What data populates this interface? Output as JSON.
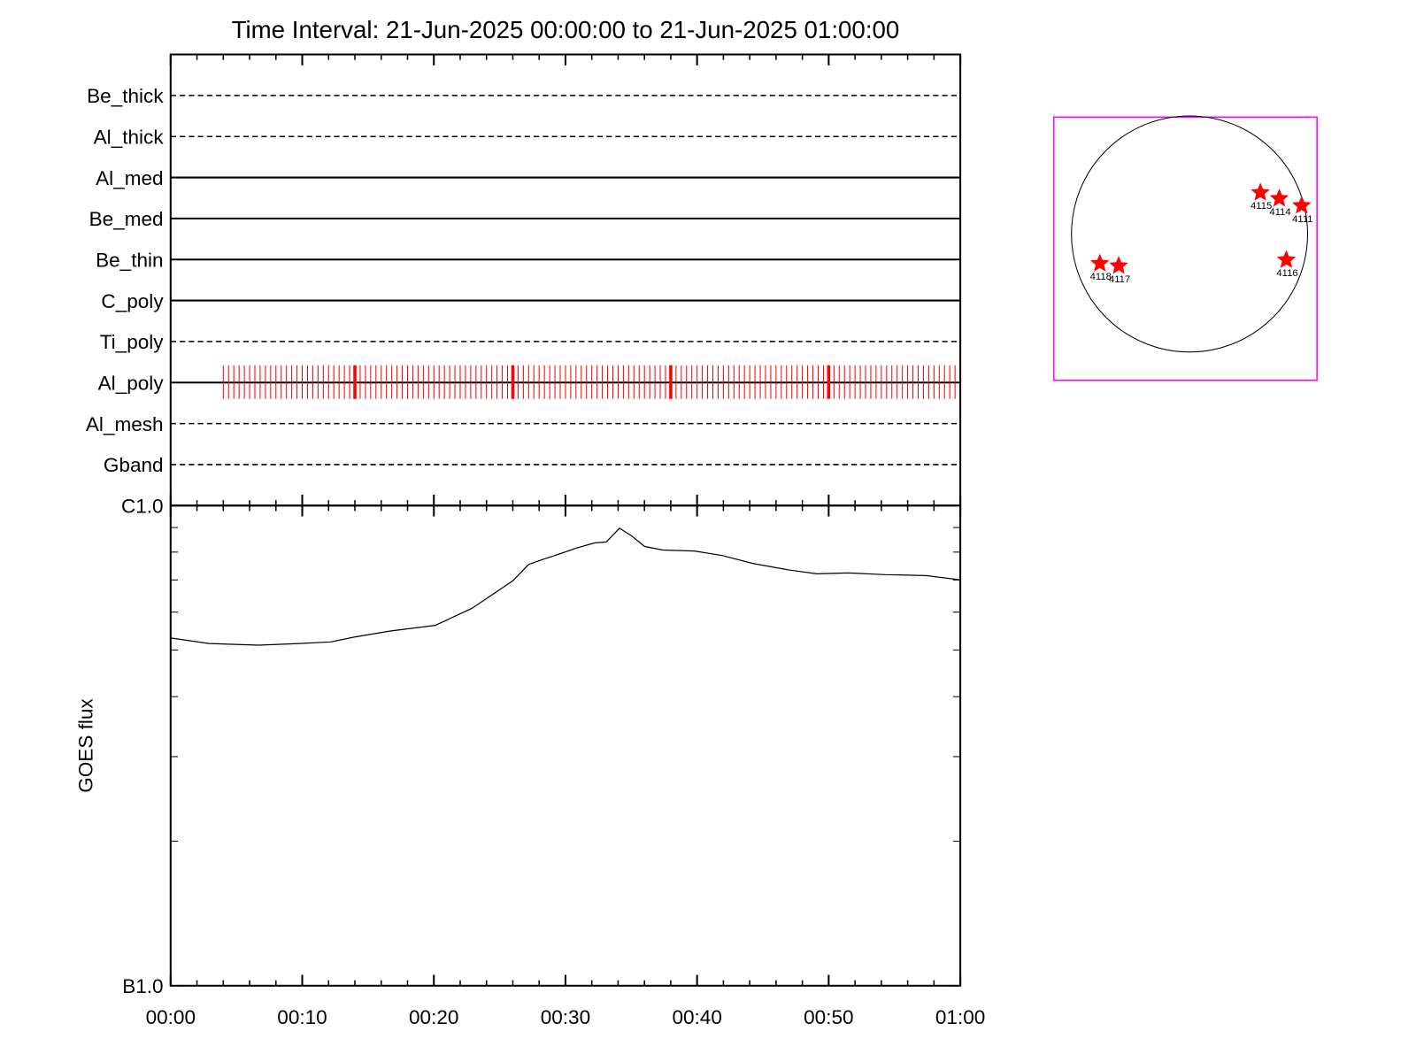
{
  "chart_data": [
    {
      "type": "timeline",
      "title": "Time Interval: 21-Jun-2025 00:00:00 to 21-Jun-2025 01:00:00",
      "categories": [
        "Be_thick",
        "Al_thick",
        "Al_med",
        "Be_med",
        "Be_thin",
        "C_poly",
        "Ti_poly",
        "Al_poly",
        "Al_mesh",
        "Gband"
      ],
      "line_styles": [
        "dashed",
        "dashed",
        "solid",
        "solid",
        "solid",
        "solid",
        "dashed",
        "solid",
        "dashed",
        "dashed"
      ],
      "observation_row": 7,
      "color": "#ff0000",
      "xlim": [
        0,
        60
      ],
      "x": [
        4,
        4.4,
        4.8,
        5.2,
        5.6,
        6,
        6.4,
        6.8,
        7.2,
        7.6,
        8,
        8.4,
        8.8,
        9.2,
        9.6,
        10,
        10.4,
        10.8,
        11.2,
        11.6,
        12,
        12.4,
        12.8,
        13.2,
        13.6,
        14,
        14.4,
        14.8,
        15.2,
        15.6,
        16,
        16.4,
        16.8,
        17.2,
        17.6,
        18,
        18.4,
        18.8,
        19.2,
        19.6,
        20,
        20.4,
        20.8,
        21.2,
        21.6,
        22,
        22.4,
        22.8,
        23.2,
        23.6,
        24,
        24.4,
        24.8,
        25.2,
        25.6,
        26,
        26.4,
        26.8,
        27.2,
        27.6,
        28,
        28.4,
        28.8,
        29.2,
        29.6,
        30,
        30.4,
        30.8,
        31.2,
        31.6,
        32,
        32.4,
        32.8,
        33.2,
        33.6,
        34,
        34.4,
        34.8,
        35.2,
        35.6,
        36,
        36.4,
        36.8,
        37.2,
        37.6,
        38,
        38.4,
        38.8,
        39.2,
        39.6,
        40,
        40.4,
        40.8,
        41.2,
        41.6,
        42,
        42.4,
        42.8,
        43.2,
        43.6,
        44,
        44.4,
        44.8,
        45.2,
        45.6,
        46,
        46.4,
        46.8,
        47.2,
        47.6,
        48,
        48.4,
        48.8,
        49.2,
        49.6,
        50,
        50.4,
        50.8,
        51.2,
        51.6,
        52,
        52.4,
        52.8,
        53.2,
        53.6,
        54,
        54.4,
        54.8,
        55.2,
        55.6,
        56,
        56.4,
        56.8,
        57.2,
        57.6,
        58,
        58.4,
        58.8,
        59.2,
        59.6
      ],
      "highlight_x": [
        14,
        26,
        38,
        50
      ]
    },
    {
      "type": "line",
      "ylabel": "GOES flux",
      "color": "#000000",
      "log_y": true,
      "xlim": [
        0,
        60
      ],
      "xticks": [
        {
          "value": 0,
          "label": "00:00"
        },
        {
          "value": 10,
          "label": "00:10"
        },
        {
          "value": 20,
          "label": "00:20"
        },
        {
          "value": 30,
          "label": "00:30"
        },
        {
          "value": 40,
          "label": "00:40"
        },
        {
          "value": 50,
          "label": "00:50"
        },
        {
          "value": 60,
          "label": "01:00"
        }
      ],
      "xminor_ticks": [
        2,
        4,
        6,
        8,
        12,
        14,
        16,
        18,
        22,
        24,
        26,
        28,
        32,
        34,
        36,
        38,
        42,
        44,
        46,
        48,
        52,
        54,
        56,
        58
      ],
      "ylim": [
        1e-07,
        1e-06
      ],
      "yticks": [
        {
          "value": 1e-06,
          "label": "C1.0"
        },
        {
          "value": 1e-07,
          "label": "B1.0"
        }
      ],
      "yminor_ticks": [
        2e-07,
        3e-07,
        4e-07,
        5e-07,
        6e-07,
        7e-07,
        8e-07,
        9e-07
      ],
      "x": [
        0,
        2.9,
        6.7,
        9.8,
        12.2,
        13.9,
        16.7,
        20.1,
        22.9,
        26.0,
        27.2,
        28.3,
        29.2,
        30.8,
        32.2,
        33.1,
        34.1,
        35.0,
        36.0,
        37.4,
        39.8,
        41.9,
        44.3,
        47.0,
        49.1,
        51.5,
        54.3,
        57.4,
        60
      ],
      "values": [
        5.3e-07,
        5.16e-07,
        5.12e-07,
        5.16e-07,
        5.2e-07,
        5.32e-07,
        5.48e-07,
        5.63e-07,
        6.11e-07,
        6.97e-07,
        7.54e-07,
        7.73e-07,
        7.87e-07,
        8.15e-07,
        8.36e-07,
        8.4e-07,
        8.97e-07,
        8.66e-07,
        8.22e-07,
        8.08e-07,
        8.04e-07,
        7.87e-07,
        7.57e-07,
        7.34e-07,
        7.21e-07,
        7.24e-07,
        7.18e-07,
        7.15e-07,
        7e-07
      ]
    },
    {
      "type": "disk",
      "color": "#ff0000",
      "box_color": "#ff00ff",
      "xlim": [
        -1.15,
        1.08
      ],
      "ylim": [
        -1.24,
        0.99
      ],
      "labels": [
        "4115",
        "4114",
        "4111",
        "4116",
        "4118",
        "4117"
      ],
      "x": [
        0.6,
        0.76,
        0.95,
        0.82,
        -0.76,
        -0.6
      ],
      "y": [
        0.35,
        0.3,
        0.24,
        -0.22,
        -0.25,
        -0.27
      ]
    }
  ]
}
